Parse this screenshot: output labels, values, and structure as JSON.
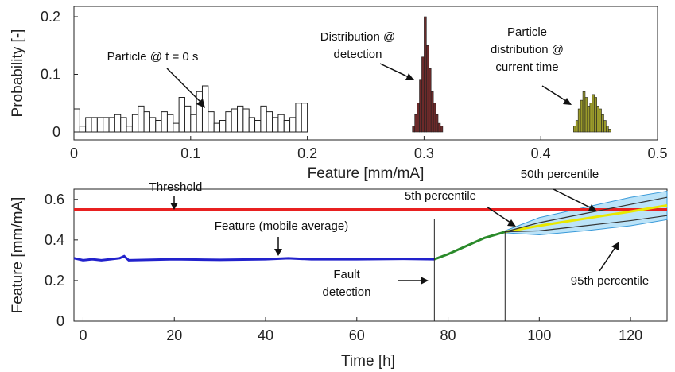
{
  "chart_data": [
    {
      "type": "bar",
      "panel": "top",
      "xlabel": "Feature [mm/mA]",
      "ylabel": "Probability [-]",
      "xlim": [
        0,
        0.5
      ],
      "ylim": [
        0,
        0.2
      ],
      "xticks": [
        0,
        0.1,
        0.2,
        0.3,
        0.4,
        0.5
      ],
      "yticks": [
        0,
        0.1,
        0.2
      ],
      "xtick_labels": [
        "0",
        "0.1",
        "0.2",
        "0.3",
        "0.4",
        "0.5"
      ],
      "ytick_labels": [
        "0",
        "0.1",
        "0.2"
      ],
      "grid": false,
      "series": [
        {
          "name": "Particle @ t = 0 s",
          "color": "#ffffff",
          "edge": "#222222",
          "x": [
            0.0,
            0.005,
            0.01,
            0.015,
            0.02,
            0.025,
            0.03,
            0.035,
            0.04,
            0.045,
            0.05,
            0.055,
            0.06,
            0.065,
            0.07,
            0.075,
            0.08,
            0.085,
            0.09,
            0.095,
            0.1,
            0.105,
            0.11,
            0.115,
            0.12,
            0.125,
            0.13,
            0.135,
            0.14,
            0.145,
            0.15,
            0.155,
            0.16,
            0.165,
            0.17,
            0.175,
            0.18,
            0.185,
            0.19,
            0.195
          ],
          "values": [
            0.04,
            0.01,
            0.025,
            0.025,
            0.025,
            0.025,
            0.025,
            0.03,
            0.025,
            0.01,
            0.03,
            0.045,
            0.035,
            0.025,
            0.02,
            0.035,
            0.03,
            0.015,
            0.06,
            0.045,
            0.03,
            0.07,
            0.08,
            0.035,
            0.015,
            0.02,
            0.035,
            0.04,
            0.045,
            0.04,
            0.025,
            0.02,
            0.045,
            0.035,
            0.025,
            0.03,
            0.02,
            0.025,
            0.05,
            0.05
          ]
        },
        {
          "name": "Distribution @ detection",
          "color": "#6b2a2a",
          "x": [
            0.29,
            0.292,
            0.294,
            0.296,
            0.298,
            0.3,
            0.302,
            0.304,
            0.306,
            0.308,
            0.31,
            0.312,
            0.314
          ],
          "values": [
            0.01,
            0.03,
            0.05,
            0.09,
            0.13,
            0.2,
            0.15,
            0.11,
            0.07,
            0.05,
            0.03,
            0.015,
            0.01
          ]
        },
        {
          "name": "Particle distribution @ current time",
          "color": "#9a9a2a",
          "x": [
            0.428,
            0.43,
            0.432,
            0.434,
            0.436,
            0.438,
            0.44,
            0.442,
            0.444,
            0.446,
            0.448,
            0.45,
            0.452,
            0.454,
            0.456,
            0.458
          ],
          "values": [
            0.01,
            0.02,
            0.04,
            0.055,
            0.07,
            0.06,
            0.045,
            0.05,
            0.065,
            0.06,
            0.045,
            0.04,
            0.03,
            0.02,
            0.01,
            0.005
          ]
        }
      ],
      "annotations": [
        {
          "text": "Particle @ t = 0 s"
        },
        {
          "lines": [
            "Distribution @",
            "detection"
          ]
        },
        {
          "lines": [
            "Particle",
            "distribution @",
            "current time"
          ]
        }
      ]
    },
    {
      "type": "line",
      "panel": "bottom",
      "xlabel": "Time [h]",
      "ylabel": "Feature [mm/mA]",
      "xlim": [
        -2,
        128
      ],
      "ylim": [
        0,
        0.65
      ],
      "xticks": [
        0,
        20,
        40,
        60,
        80,
        100,
        120
      ],
      "yticks": [
        0,
        0.2,
        0.4,
        0.6
      ],
      "xtick_labels": [
        "0",
        "20",
        "40",
        "60",
        "80",
        "100",
        "120"
      ],
      "ytick_labels": [
        "0",
        "0.2",
        "0.4",
        "0.6"
      ],
      "grid": false,
      "threshold": {
        "value": 0.55,
        "label": "Threshold",
        "color": "#e82020"
      },
      "fault_detection_time": 77,
      "current_time": 92.5,
      "series": [
        {
          "name": "Feature (mobile average)",
          "color": "#2222cc",
          "x": [
            -2,
            0,
            2,
            4,
            6,
            8,
            9,
            10,
            20,
            30,
            40,
            45,
            50,
            60,
            70,
            77
          ],
          "y": [
            0.31,
            0.3,
            0.305,
            0.3,
            0.305,
            0.31,
            0.32,
            0.3,
            0.305,
            0.302,
            0.305,
            0.31,
            0.305,
            0.305,
            0.307,
            0.305
          ]
        },
        {
          "color": "#2a8a2a",
          "x": [
            77,
            80,
            84,
            88,
            92.5
          ],
          "y": [
            0.305,
            0.33,
            0.37,
            0.41,
            0.44
          ]
        },
        {
          "name": "50th percentile",
          "color": "#e8e800",
          "x": [
            92.5,
            100,
            110,
            120,
            128
          ],
          "y": [
            0.44,
            0.47,
            0.505,
            0.54,
            0.57
          ]
        },
        {
          "name": "5th percentile",
          "color": "#333333",
          "x": [
            92.5,
            100,
            110,
            120,
            128
          ],
          "y": [
            0.44,
            0.485,
            0.53,
            0.575,
            0.61
          ]
        },
        {
          "name": "95th percentile",
          "color": "#333333",
          "x": [
            92.5,
            100,
            110,
            120,
            128
          ],
          "y": [
            0.44,
            0.445,
            0.47,
            0.495,
            0.52
          ]
        }
      ],
      "band": {
        "color": "#9ed7f5",
        "x": [
          92.5,
          100,
          110,
          120,
          128
        ],
        "upper": [
          0.445,
          0.51,
          0.56,
          0.61,
          0.64
        ],
        "lower": [
          0.435,
          0.425,
          0.445,
          0.47,
          0.5
        ]
      },
      "annotations": [
        {
          "text": "Threshold"
        },
        {
          "text": "Feature (mobile average)"
        },
        {
          "lines": [
            "Fault",
            "detection"
          ]
        },
        {
          "text": "5th percentile"
        },
        {
          "text": "50th percentile"
        },
        {
          "text": "95th percentile"
        }
      ]
    }
  ]
}
